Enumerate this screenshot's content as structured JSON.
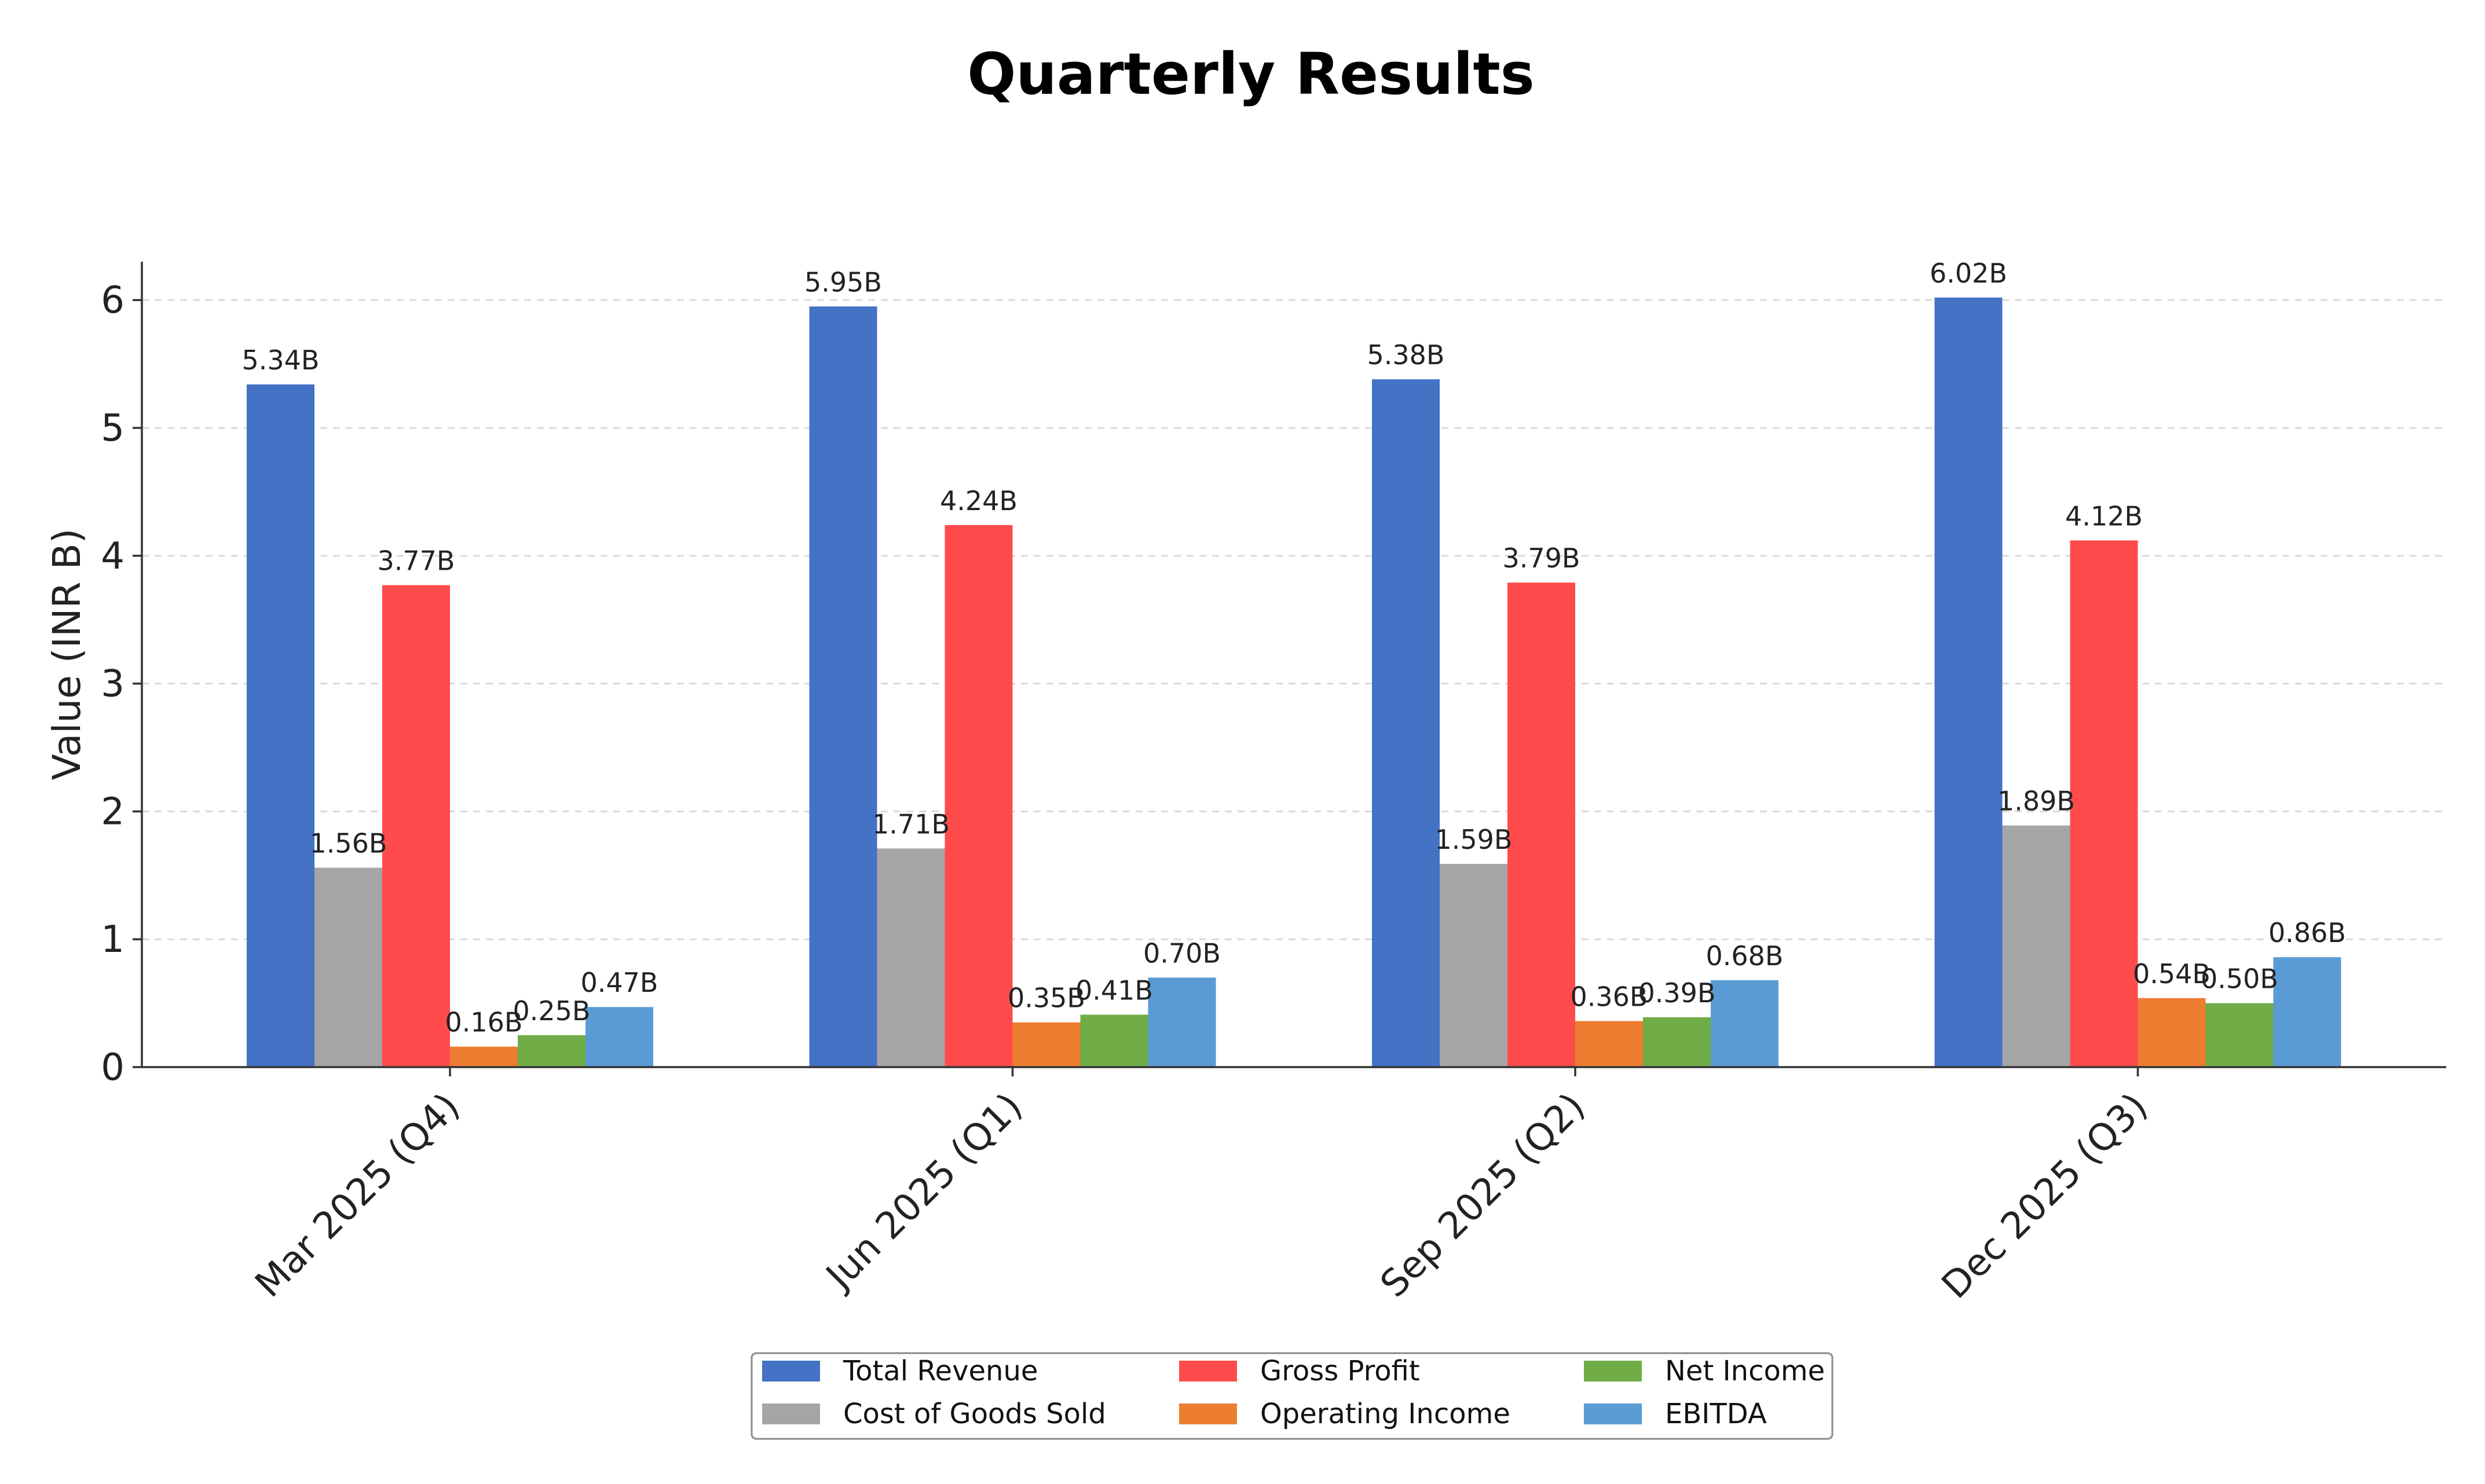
{
  "chart_data": {
    "type": "bar",
    "title": "Quarterly Results",
    "xlabel": "",
    "ylabel": "Value (INR B)",
    "ylim": [
      0,
      6.3
    ],
    "yticks": [
      0,
      1,
      2,
      3,
      4,
      5,
      6
    ],
    "grid": true,
    "legend_position": "bottom-center",
    "categories": [
      "Mar 2025 (Q4)",
      "Jun 2025 (Q1)",
      "Sep 2025 (Q2)",
      "Dec 2025 (Q3)"
    ],
    "series": [
      {
        "name": "Total Revenue",
        "color": "#4472C4",
        "values": [
          5.34,
          5.95,
          5.38,
          6.02
        ],
        "labels": [
          "5.34B",
          "5.95B",
          "5.38B",
          "6.02B"
        ]
      },
      {
        "name": "Cost of Goods Sold",
        "color": "#A5A5A5",
        "values": [
          1.56,
          1.71,
          1.59,
          1.89
        ],
        "labels": [
          "1.56B",
          "1.71B",
          "1.59B",
          "1.89B"
        ]
      },
      {
        "name": "Gross Profit",
        "color": "#FF4B4B",
        "values": [
          3.77,
          4.24,
          3.79,
          4.12
        ],
        "labels": [
          "3.77B",
          "4.24B",
          "3.79B",
          "4.12B"
        ]
      },
      {
        "name": "Operating Income",
        "color": "#ED7D31",
        "values": [
          0.16,
          0.35,
          0.36,
          0.54
        ],
        "labels": [
          "0.16B",
          "0.35B",
          "0.36B",
          "0.54B"
        ]
      },
      {
        "name": "Net Income",
        "color": "#70AD47",
        "values": [
          0.25,
          0.41,
          0.39,
          0.5
        ],
        "labels": [
          "0.25B",
          "0.41B",
          "0.39B",
          "0.50B"
        ]
      },
      {
        "name": "EBITDA",
        "color": "#5B9BD5",
        "values": [
          0.47,
          0.7,
          0.68,
          0.86
        ],
        "labels": [
          "0.47B",
          "0.70B",
          "0.68B",
          "0.86B"
        ]
      }
    ]
  }
}
